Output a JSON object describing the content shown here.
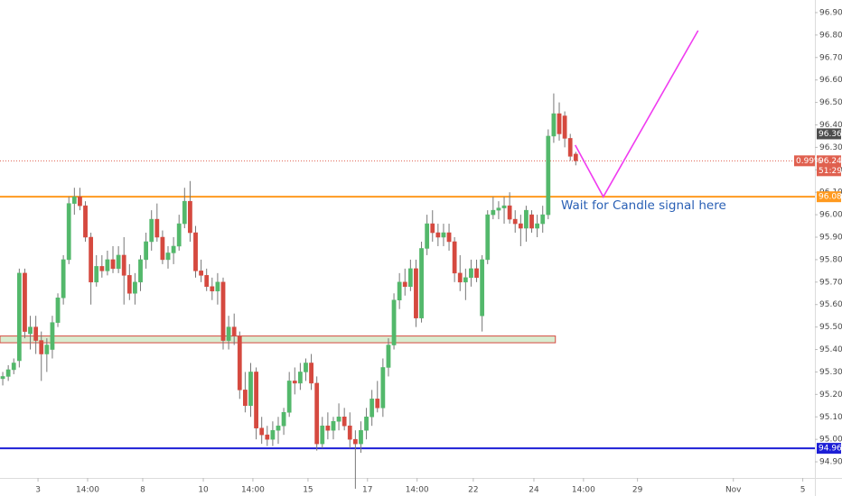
{
  "chart_data": {
    "type": "candlestick",
    "colors": {
      "up": "#53b86b",
      "down": "#d5493f"
    },
    "xlim": [
      -0.5,
      147.4
    ],
    "xticks": [
      {
        "value": 6.4,
        "label": "3"
      },
      {
        "value": 15.4,
        "label": "14:00"
      },
      {
        "value": 25.4,
        "label": "8"
      },
      {
        "value": 36.4,
        "label": "10"
      },
      {
        "value": 45.4,
        "label": "14:00"
      },
      {
        "value": 55.4,
        "label": "15"
      },
      {
        "value": 66.2,
        "label": "17"
      },
      {
        "value": 75.2,
        "label": "14:00"
      },
      {
        "value": 85.4,
        "label": "22"
      },
      {
        "value": 96.4,
        "label": "24"
      },
      {
        "value": 105.4,
        "label": "14:00"
      },
      {
        "value": 115.2,
        "label": "29"
      },
      {
        "value": 132.6,
        "label": "Nov"
      },
      {
        "value": 145.2,
        "label": "5"
      }
    ],
    "ylim": [
      94.828,
      96.956
    ],
    "yticks": [
      {
        "value": 94.9,
        "label": "94.90"
      },
      {
        "value": 95.0,
        "label": "95.00"
      },
      {
        "value": 95.1,
        "label": "95.10"
      },
      {
        "value": 95.2,
        "label": "95.20"
      },
      {
        "value": 95.3,
        "label": "95.30"
      },
      {
        "value": 95.4,
        "label": "95.40"
      },
      {
        "value": 95.5,
        "label": "95.50"
      },
      {
        "value": 95.6,
        "label": "95.60"
      },
      {
        "value": 95.7,
        "label": "95.70"
      },
      {
        "value": 95.8,
        "label": "95.80"
      },
      {
        "value": 95.9,
        "label": "95.90"
      },
      {
        "value": 96.0,
        "label": "96.00"
      },
      {
        "value": 96.1,
        "label": "96.10"
      },
      {
        "value": 96.2,
        "label": "96.20"
      },
      {
        "value": 96.3,
        "label": "96.30"
      },
      {
        "value": 96.4,
        "label": "96.40"
      },
      {
        "value": 96.5,
        "label": "96.50"
      },
      {
        "value": 96.6,
        "label": "96.60"
      },
      {
        "value": 96.7,
        "label": "96.70"
      },
      {
        "value": 96.8,
        "label": "96.80"
      },
      {
        "value": 96.9,
        "label": "96.90"
      }
    ],
    "grid": false,
    "candles": [
      [
        95.27,
        95.3,
        95.24,
        95.28
      ],
      [
        95.28,
        95.33,
        95.26,
        95.31
      ],
      [
        95.31,
        95.36,
        95.29,
        95.34
      ],
      [
        95.35,
        95.76,
        95.32,
        95.74
      ],
      [
        95.74,
        95.76,
        95.45,
        95.48
      ],
      [
        95.47,
        95.55,
        95.4,
        95.5
      ],
      [
        95.5,
        95.55,
        95.38,
        95.44
      ],
      [
        95.44,
        95.48,
        95.26,
        95.38
      ],
      [
        95.38,
        95.45,
        95.3,
        95.42
      ],
      [
        95.4,
        95.55,
        95.36,
        95.52
      ],
      [
        95.52,
        95.65,
        95.5,
        95.63
      ],
      [
        95.63,
        95.82,
        95.6,
        95.8
      ],
      [
        95.8,
        96.08,
        95.78,
        96.05
      ],
      [
        96.05,
        96.12,
        96.0,
        96.08
      ],
      [
        96.08,
        96.12,
        96.02,
        96.04
      ],
      [
        96.04,
        96.06,
        95.88,
        95.9
      ],
      [
        95.9,
        95.92,
        95.6,
        95.7
      ],
      [
        95.7,
        95.82,
        95.68,
        95.77
      ],
      [
        95.77,
        95.82,
        95.72,
        95.75
      ],
      [
        95.75,
        95.84,
        95.73,
        95.8
      ],
      [
        95.8,
        95.86,
        95.74,
        95.76
      ],
      [
        95.76,
        95.86,
        95.74,
        95.82
      ],
      [
        95.82,
        95.9,
        95.6,
        95.73
      ],
      [
        95.73,
        95.78,
        95.62,
        95.65
      ],
      [
        95.65,
        95.74,
        95.6,
        95.7
      ],
      [
        95.7,
        95.82,
        95.66,
        95.8
      ],
      [
        95.8,
        95.92,
        95.76,
        95.88
      ],
      [
        95.88,
        96.02,
        95.84,
        95.98
      ],
      [
        95.98,
        96.05,
        95.88,
        95.9
      ],
      [
        95.9,
        95.93,
        95.78,
        95.8
      ],
      [
        95.8,
        95.86,
        95.76,
        95.83
      ],
      [
        95.83,
        95.9,
        95.78,
        95.86
      ],
      [
        95.86,
        96.0,
        95.84,
        95.96
      ],
      [
        95.96,
        96.12,
        95.94,
        96.06
      ],
      [
        96.06,
        96.15,
        95.88,
        95.92
      ],
      [
        95.92,
        95.95,
        95.72,
        95.75
      ],
      [
        95.75,
        95.8,
        95.7,
        95.73
      ],
      [
        95.73,
        95.76,
        95.66,
        95.68
      ],
      [
        95.68,
        95.72,
        95.62,
        95.66
      ],
      [
        95.66,
        95.74,
        95.6,
        95.7
      ],
      [
        95.7,
        95.72,
        95.4,
        95.44
      ],
      [
        95.44,
        95.55,
        95.4,
        95.5
      ],
      [
        95.5,
        95.56,
        95.42,
        95.46
      ],
      [
        95.46,
        95.48,
        95.18,
        95.22
      ],
      [
        95.22,
        95.3,
        95.12,
        95.15
      ],
      [
        95.15,
        95.34,
        95.1,
        95.3
      ],
      [
        95.3,
        95.32,
        95.0,
        95.05
      ],
      [
        95.05,
        95.1,
        94.98,
        95.02
      ],
      [
        95.02,
        95.06,
        94.97,
        95.0
      ],
      [
        95.0,
        95.08,
        94.97,
        95.04
      ],
      [
        95.04,
        95.1,
        94.98,
        95.06
      ],
      [
        95.06,
        95.14,
        95.02,
        95.12
      ],
      [
        95.12,
        95.3,
        95.1,
        95.26
      ],
      [
        95.26,
        95.32,
        95.2,
        95.25
      ],
      [
        95.25,
        95.34,
        95.22,
        95.3
      ],
      [
        95.3,
        95.36,
        95.26,
        95.34
      ],
      [
        95.34,
        95.38,
        95.22,
        95.25
      ],
      [
        95.25,
        95.28,
        94.95,
        94.98
      ],
      [
        94.98,
        95.1,
        94.96,
        95.06
      ],
      [
        95.06,
        95.12,
        95.0,
        95.04
      ],
      [
        95.04,
        95.1,
        95.0,
        95.08
      ],
      [
        95.08,
        95.16,
        95.04,
        95.1
      ],
      [
        95.1,
        95.14,
        95.04,
        95.06
      ],
      [
        95.06,
        95.12,
        94.96,
        95.0
      ],
      [
        95.0,
        95.04,
        94.78,
        94.98
      ],
      [
        94.98,
        95.08,
        94.94,
        95.04
      ],
      [
        95.04,
        95.14,
        95.0,
        95.1
      ],
      [
        95.1,
        95.22,
        95.06,
        95.18
      ],
      [
        95.18,
        95.26,
        95.12,
        95.14
      ],
      [
        95.14,
        95.36,
        95.1,
        95.32
      ],
      [
        95.32,
        95.45,
        95.28,
        95.42
      ],
      [
        95.42,
        95.65,
        95.4,
        95.62
      ],
      [
        95.62,
        95.74,
        95.58,
        95.7
      ],
      [
        95.7,
        95.76,
        95.64,
        95.68
      ],
      [
        95.68,
        95.8,
        95.66,
        95.76
      ],
      [
        95.76,
        95.8,
        95.5,
        95.54
      ],
      [
        95.54,
        95.88,
        95.52,
        95.85
      ],
      [
        95.85,
        96.0,
        95.82,
        95.96
      ],
      [
        95.96,
        96.02,
        95.88,
        95.92
      ],
      [
        95.92,
        95.96,
        95.86,
        95.9
      ],
      [
        95.9,
        95.96,
        95.86,
        95.92
      ],
      [
        95.92,
        95.96,
        95.84,
        95.88
      ],
      [
        95.88,
        95.9,
        95.7,
        95.74
      ],
      [
        95.74,
        95.82,
        95.66,
        95.7
      ],
      [
        95.7,
        95.76,
        95.62,
        95.72
      ],
      [
        95.72,
        95.8,
        95.68,
        95.76
      ],
      [
        95.76,
        95.8,
        95.7,
        95.72
      ],
      [
        95.55,
        95.82,
        95.48,
        95.8
      ],
      [
        95.8,
        96.02,
        95.78,
        96.0
      ],
      [
        96.0,
        96.08,
        95.98,
        96.02
      ],
      [
        96.02,
        96.06,
        95.98,
        96.03
      ],
      [
        96.03,
        96.08,
        95.96,
        96.04
      ],
      [
        96.04,
        96.1,
        95.96,
        95.98
      ],
      [
        95.98,
        96.02,
        95.92,
        95.96
      ],
      [
        95.96,
        96.0,
        95.86,
        95.94
      ],
      [
        95.94,
        96.04,
        95.88,
        96.02
      ],
      [
        96.0,
        96.02,
        95.92,
        95.94
      ],
      [
        95.94,
        96.0,
        95.9,
        95.96
      ],
      [
        95.96,
        96.04,
        95.92,
        96.0
      ],
      [
        96.0,
        96.38,
        95.98,
        96.35
      ],
      [
        96.35,
        96.54,
        96.32,
        96.45
      ],
      [
        96.45,
        96.5,
        96.33,
        96.36
      ],
      [
        96.44,
        96.46,
        96.3,
        96.34
      ],
      [
        96.34,
        96.36,
        96.24,
        96.26
      ],
      [
        96.27,
        96.28,
        96.22,
        96.24
      ]
    ],
    "levels": [
      {
        "value": 96.08,
        "color": "#ff9a1f",
        "style": "solid"
      },
      {
        "value": 94.96,
        "color": "#1d1fd6",
        "style": "solid"
      },
      {
        "value": 96.24,
        "color": "#e0604f",
        "style": "dotted"
      }
    ],
    "price_labels": [
      {
        "value": 96.36,
        "color": "#4d4d4d"
      }
    ],
    "price_change": "0.99%",
    "countdown": "51:29",
    "zone": {
      "from": 95.43,
      "to": 95.46,
      "end": 100.3,
      "fill": "#d9ecd0",
      "stroke": "#d5493f"
    },
    "projection": {
      "x": [
        103.9,
        109.0,
        126.2
      ],
      "y": [
        96.31,
        96.08,
        96.82
      ],
      "color": "#f03cf0"
    },
    "annotation": "Wait for Candle signal here"
  }
}
